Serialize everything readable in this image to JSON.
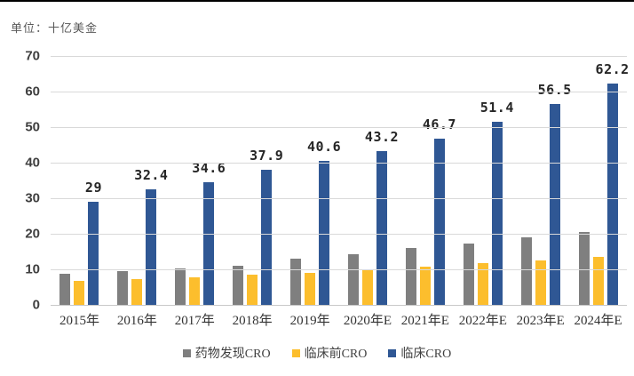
{
  "unit_label": "单位：十亿美金",
  "colors": {
    "drug_discovery": "#7f7f7f",
    "preclinical": "#fcbe2d",
    "clinical": "#2f5794",
    "gridline": "#d9d9d9",
    "top_border": "#000000",
    "axis_text": "#3f3f3f"
  },
  "chart_data": {
    "type": "bar",
    "title": "",
    "unit": "十亿美金",
    "categories": [
      "2015年",
      "2016年",
      "2017年",
      "2018年",
      "2019年",
      "2020年E",
      "2021年E",
      "2022年E",
      "2023年E",
      "2024年E"
    ],
    "series": [
      {
        "name": "药物发现CRO",
        "color": "#7f7f7f",
        "values": [
          8.7,
          9.6,
          10.3,
          11.1,
          12.9,
          14.3,
          15.9,
          17.2,
          18.9,
          20.5
        ],
        "labels_visible": false
      },
      {
        "name": "临床前CRO",
        "color": "#fcbe2d",
        "values": [
          6.8,
          7.2,
          7.8,
          8.4,
          9.0,
          9.7,
          10.7,
          11.8,
          12.4,
          13.5
        ],
        "labels_visible": false
      },
      {
        "name": "临床CRO",
        "color": "#2f5794",
        "values": [
          29,
          32.4,
          34.6,
          37.9,
          40.6,
          43.2,
          46.7,
          51.4,
          56.5,
          62.2
        ],
        "labels_visible": true,
        "labels": [
          "29",
          "32.4",
          "34.6",
          "37.9",
          "40.6",
          "43.2",
          "46.7",
          "51.4",
          "56.5",
          "62.2"
        ]
      }
    ],
    "ylim": [
      0,
      70
    ],
    "ytick_step": 10,
    "yticks": [
      "70",
      "60",
      "50",
      "40",
      "30",
      "20",
      "10",
      "0"
    ],
    "grid": "horizontal",
    "legend_position": "bottom"
  }
}
